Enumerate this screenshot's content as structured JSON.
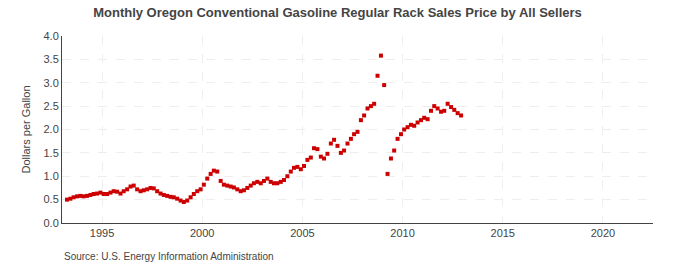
{
  "chart_data": {
    "type": "scatter",
    "title": "Monthly Oregon Conventional Gasoline Regular Rack Sales Price by All Sellers",
    "ylabel": "Dollars per Gallon",
    "annotations": [
      "Source: U.S. Energy Information Administration"
    ],
    "xlim": [
      1993.0,
      2022.5
    ],
    "ylim": [
      0.0,
      4.0
    ],
    "xticks": [
      1995,
      2000,
      2005,
      2010,
      2015,
      2020
    ],
    "yticks": [
      {
        "value": 0.0,
        "label": "0.0"
      },
      0.5,
      {
        "value": 1.0,
        "label": "1.0"
      },
      1.5,
      {
        "value": 2.0,
        "label": "2.0"
      },
      2.5,
      {
        "value": 3.0,
        "label": "3.0"
      },
      3.5,
      {
        "value": 4.0,
        "label": "4.0"
      }
    ],
    "grid": true,
    "color": "#cc0000",
    "marker": "square",
    "x": [
      1993.25,
      1993.42,
      1993.58,
      1993.75,
      1993.92,
      1994.08,
      1994.25,
      1994.42,
      1994.58,
      1994.75,
      1994.92,
      1995.08,
      1995.25,
      1995.42,
      1995.58,
      1995.75,
      1995.92,
      1996.08,
      1996.25,
      1996.42,
      1996.58,
      1996.75,
      1996.92,
      1997.08,
      1997.25,
      1997.42,
      1997.58,
      1997.75,
      1997.92,
      1998.08,
      1998.25,
      1998.42,
      1998.58,
      1998.75,
      1998.92,
      1999.08,
      1999.25,
      1999.42,
      1999.58,
      1999.75,
      1999.92,
      2000.08,
      2000.25,
      2000.42,
      2000.58,
      2000.75,
      2000.92,
      2001.08,
      2001.25,
      2001.42,
      2001.58,
      2001.75,
      2001.92,
      2002.08,
      2002.25,
      2002.42,
      2002.58,
      2002.75,
      2002.92,
      2003.08,
      2003.25,
      2003.42,
      2003.58,
      2003.75,
      2003.92,
      2004.08,
      2004.25,
      2004.42,
      2004.58,
      2004.75,
      2004.92,
      2005.08,
      2005.25,
      2005.42,
      2005.58,
      2005.75,
      2005.92,
      2006.08,
      2006.25,
      2006.42,
      2006.58,
      2006.75,
      2006.92,
      2007.08,
      2007.25,
      2007.42,
      2007.58,
      2007.75,
      2007.92,
      2008.08,
      2008.25,
      2008.42,
      2008.58,
      2008.75,
      2008.92,
      2009.08,
      2009.25,
      2009.42,
      2009.58,
      2009.75,
      2009.92,
      2010.08,
      2010.25,
      2010.42,
      2010.58,
      2010.75,
      2010.92,
      2011.08,
      2011.25,
      2011.42,
      2011.58,
      2011.75,
      2011.92,
      2012.08,
      2012.25,
      2012.42,
      2012.58,
      2012.75,
      2012.92
    ],
    "values": [
      0.5,
      0.52,
      0.55,
      0.57,
      0.58,
      0.57,
      0.58,
      0.6,
      0.62,
      0.63,
      0.65,
      0.62,
      0.62,
      0.65,
      0.68,
      0.67,
      0.63,
      0.68,
      0.72,
      0.78,
      0.8,
      0.72,
      0.68,
      0.7,
      0.72,
      0.75,
      0.74,
      0.68,
      0.63,
      0.6,
      0.58,
      0.56,
      0.55,
      0.52,
      0.48,
      0.45,
      0.48,
      0.55,
      0.62,
      0.68,
      0.72,
      0.82,
      0.95,
      1.05,
      1.12,
      1.1,
      0.9,
      0.82,
      0.8,
      0.78,
      0.76,
      0.72,
      0.68,
      0.7,
      0.75,
      0.8,
      0.85,
      0.88,
      0.85,
      0.9,
      0.95,
      0.88,
      0.85,
      0.85,
      0.88,
      0.92,
      1.0,
      1.1,
      1.18,
      1.2,
      1.15,
      1.22,
      1.35,
      1.4,
      1.6,
      1.58,
      1.42,
      1.38,
      1.48,
      1.7,
      1.78,
      1.65,
      1.5,
      1.55,
      1.7,
      1.8,
      1.9,
      1.95,
      2.2,
      2.3,
      2.45,
      2.5,
      2.55,
      3.15,
      3.58,
      2.95,
      1.05,
      1.38,
      1.55,
      1.8,
      1.9,
      2.0,
      2.05,
      2.1,
      2.08,
      2.15,
      2.2,
      2.25,
      2.22,
      2.4,
      2.5,
      2.45,
      2.38,
      2.4,
      2.55,
      2.48,
      2.42,
      2.35,
      2.3
    ]
  }
}
